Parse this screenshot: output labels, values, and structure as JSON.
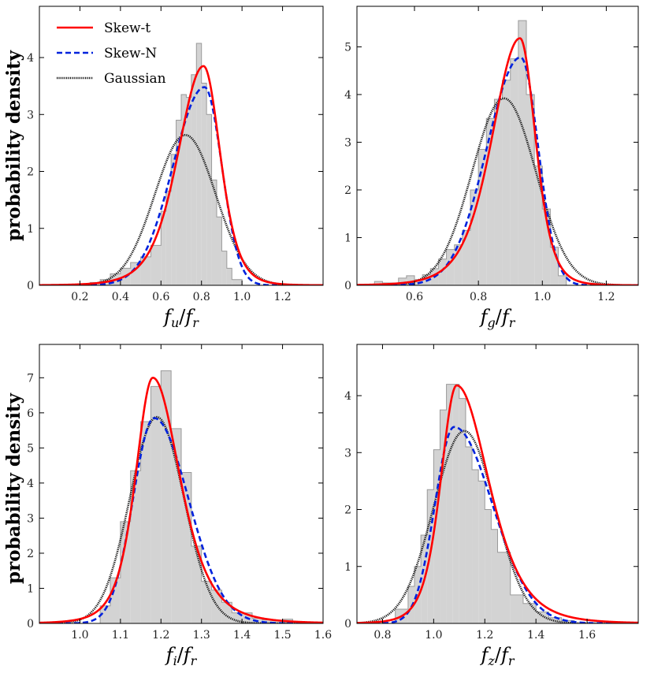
{
  "colors": {
    "skew_t": "#ff0000",
    "skew_n": "#0022dd",
    "gaussian": "#111111",
    "hist_fill": "#d3d3d3",
    "hist_edge": "#9a9a9a"
  },
  "legend": {
    "entries": [
      "Skew-t",
      "Skew-N",
      "Gaussian"
    ],
    "placement": "top-left of first panel"
  },
  "shared_ylabel": "probability density",
  "chart_data": [
    {
      "type": "histogram+line",
      "panel": "u",
      "xlabel": "f_u / f_r",
      "ylabel": "probability density",
      "xlim": [
        0.0,
        1.4
      ],
      "ylim": [
        0,
        4.9
      ],
      "xticks": [
        0.2,
        0.4,
        0.6,
        0.8,
        1.0,
        1.2
      ],
      "xtick_labels": [
        "0.2",
        "0.4",
        "0.6",
        "0.8",
        "1.0",
        "1.2"
      ],
      "yticks": [
        0,
        1,
        2,
        3,
        4
      ],
      "ytick_labels": [
        "0",
        "1",
        "2",
        "3",
        "4"
      ],
      "hist": {
        "bin_edges": [
          0.2,
          0.25,
          0.3,
          0.35,
          0.4,
          0.45,
          0.5,
          0.55,
          0.6,
          0.625,
          0.65,
          0.675,
          0.7,
          0.725,
          0.75,
          0.775,
          0.8,
          0.825,
          0.85,
          0.875,
          0.9,
          0.925,
          0.95,
          1.0
        ],
        "values": [
          0.03,
          0.05,
          0.1,
          0.2,
          0.3,
          0.4,
          0.5,
          0.7,
          1.3,
          1.65,
          2.3,
          2.9,
          3.35,
          3.3,
          3.7,
          4.25,
          3.55,
          3.0,
          1.85,
          1.2,
          0.6,
          0.3,
          0.1
        ]
      },
      "series": [
        {
          "name": "Skew-t",
          "model": "skew_t",
          "loc": 0.81,
          "peak": 3.85,
          "left_scale": 0.13,
          "right_scale": 0.085,
          "nu": 6
        },
        {
          "name": "Skew-N",
          "model": "split_normal",
          "loc": 0.815,
          "peak": 3.48,
          "left_scale": 0.155,
          "right_scale": 0.085
        },
        {
          "name": "Gaussian",
          "model": "gauss",
          "loc": 0.72,
          "peak": 2.64,
          "scale": 0.15
        }
      ]
    },
    {
      "type": "histogram+line",
      "panel": "g",
      "xlabel": "f_g / f_r",
      "ylabel": "",
      "xlim": [
        0.42,
        1.3
      ],
      "ylim": [
        0,
        5.85
      ],
      "xticks": [
        0.6,
        0.8,
        1.0,
        1.2
      ],
      "xtick_labels": [
        "0.6",
        "0.8",
        "1.0",
        "1.2"
      ],
      "yticks": [
        0,
        1,
        2,
        3,
        4,
        5
      ],
      "ytick_labels": [
        "0",
        "1",
        "2",
        "3",
        "4",
        "5"
      ],
      "hist": {
        "bin_edges": [
          0.475,
          0.5,
          0.525,
          0.55,
          0.575,
          0.6,
          0.625,
          0.65,
          0.675,
          0.7,
          0.725,
          0.75,
          0.775,
          0.8,
          0.825,
          0.85,
          0.875,
          0.9,
          0.925,
          0.95,
          0.975,
          1.0,
          1.025,
          1.05,
          1.075
        ],
        "values": [
          0.08,
          0.05,
          0.05,
          0.15,
          0.2,
          0.12,
          0.22,
          0.35,
          0.55,
          0.75,
          0.85,
          1.15,
          2.0,
          2.85,
          3.5,
          3.9,
          4.3,
          4.75,
          5.55,
          4.0,
          2.5,
          1.6,
          0.8,
          0.2
        ]
      },
      "series": [
        {
          "name": "Skew-t",
          "model": "skew_t",
          "loc": 0.93,
          "peak": 5.18,
          "left_scale": 0.09,
          "right_scale": 0.05,
          "nu": 6
        },
        {
          "name": "Skew-N",
          "model": "split_normal",
          "loc": 0.932,
          "peak": 4.78,
          "left_scale": 0.105,
          "right_scale": 0.055
        },
        {
          "name": "Gaussian",
          "model": "gauss",
          "loc": 0.88,
          "peak": 3.92,
          "scale": 0.1
        }
      ]
    },
    {
      "type": "histogram+line",
      "panel": "i",
      "xlabel": "f_i / f_r",
      "ylabel": "probability density",
      "xlim": [
        0.9,
        1.6
      ],
      "ylim": [
        0,
        7.95
      ],
      "xticks": [
        1.0,
        1.1,
        1.2,
        1.3,
        1.4,
        1.5,
        1.6
      ],
      "xtick_labels": [
        "1.0",
        "1.1",
        "1.2",
        "1.3",
        "1.4",
        "1.5",
        "1.6"
      ],
      "yticks": [
        0,
        1,
        2,
        3,
        4,
        5,
        6,
        7
      ],
      "ytick_labels": [
        "0",
        "1",
        "2",
        "3",
        "4",
        "5",
        "6",
        "7"
      ],
      "hist": {
        "bin_edges": [
          1.05,
          1.075,
          1.1,
          1.125,
          1.15,
          1.175,
          1.2,
          1.225,
          1.25,
          1.275,
          1.3,
          1.325,
          1.35,
          1.375,
          1.4,
          1.425,
          1.45,
          1.475,
          1.5,
          1.525,
          1.55
        ],
        "values": [
          0.5,
          1.3,
          2.9,
          4.35,
          5.75,
          6.75,
          7.2,
          5.55,
          4.3,
          2.2,
          1.2,
          0.95,
          0.6,
          0.3,
          0.3,
          0.15,
          0.1,
          0.08,
          0.12,
          0.05
        ]
      },
      "series": [
        {
          "name": "Skew-t",
          "model": "skew_t",
          "loc": 1.18,
          "peak": 7.0,
          "left_scale": 0.045,
          "right_scale": 0.07,
          "nu": 4
        },
        {
          "name": "Skew-N",
          "model": "split_normal",
          "loc": 1.183,
          "peak": 5.85,
          "left_scale": 0.052,
          "right_scale": 0.085
        },
        {
          "name": "Gaussian",
          "model": "gauss",
          "loc": 1.19,
          "peak": 5.88,
          "scale": 0.067
        }
      ]
    },
    {
      "type": "histogram+line",
      "panel": "z",
      "xlabel": "f_z / f_r",
      "ylabel": "",
      "xlim": [
        0.7,
        1.8
      ],
      "ylim": [
        0,
        4.9
      ],
      "xticks": [
        0.8,
        1.0,
        1.2,
        1.4,
        1.6
      ],
      "xtick_labels": [
        "0.8",
        "1.0",
        "1.2",
        "1.4",
        "1.6"
      ],
      "yticks": [
        0,
        1,
        2,
        3,
        4
      ],
      "ytick_labels": [
        "0",
        "1",
        "2",
        "3",
        "4"
      ],
      "hist": {
        "bin_edges": [
          0.85,
          0.9,
          0.925,
          0.95,
          0.975,
          1.0,
          1.025,
          1.05,
          1.075,
          1.1,
          1.125,
          1.15,
          1.175,
          1.2,
          1.225,
          1.25,
          1.3,
          1.35,
          1.4,
          1.45,
          1.5,
          1.55
        ],
        "values": [
          0.25,
          0.65,
          1.0,
          1.55,
          2.35,
          3.05,
          3.75,
          4.2,
          4.2,
          3.95,
          3.1,
          2.7,
          2.5,
          2.0,
          1.65,
          1.25,
          0.5,
          0.35,
          0.2,
          0.1,
          0.05
        ]
      },
      "series": [
        {
          "name": "Skew-t",
          "model": "skew_t",
          "loc": 1.09,
          "peak": 4.18,
          "left_scale": 0.065,
          "right_scale": 0.13,
          "nu": 5
        },
        {
          "name": "Skew-N",
          "model": "split_normal",
          "loc": 1.08,
          "peak": 3.45,
          "left_scale": 0.075,
          "right_scale": 0.15
        },
        {
          "name": "Gaussian",
          "model": "gauss",
          "loc": 1.12,
          "peak": 3.38,
          "scale": 0.12
        }
      ]
    }
  ]
}
